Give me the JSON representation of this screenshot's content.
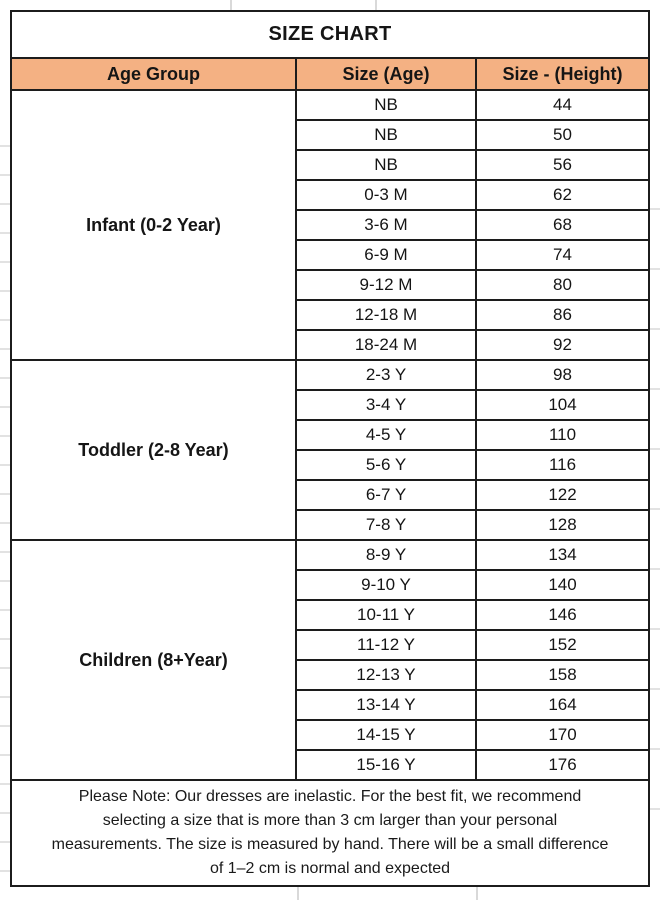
{
  "title": "SIZE CHART",
  "columns": [
    "Age Group",
    "Size (Age)",
    "Size - (Height)"
  ],
  "groups": [
    {
      "label": "Infant (0-2 Year)",
      "rows": [
        [
          "NB",
          "44"
        ],
        [
          "NB",
          "50"
        ],
        [
          "NB",
          "56"
        ],
        [
          "0-3 M",
          "62"
        ],
        [
          "3-6 M",
          "68"
        ],
        [
          "6-9 M",
          "74"
        ],
        [
          "9-12 M",
          "80"
        ],
        [
          "12-18 M",
          "86"
        ],
        [
          "18-24 M",
          "92"
        ]
      ]
    },
    {
      "label": "Toddler (2-8 Year)",
      "rows": [
        [
          "2-3 Y",
          "98"
        ],
        [
          "3-4 Y",
          "104"
        ],
        [
          "4-5 Y",
          "110"
        ],
        [
          "5-6 Y",
          "116"
        ],
        [
          "6-7 Y",
          "122"
        ],
        [
          "7-8 Y",
          "128"
        ]
      ]
    },
    {
      "label": "Children (8+Year)",
      "rows": [
        [
          "8-9 Y",
          "134"
        ],
        [
          "9-10 Y",
          "140"
        ],
        [
          "10-11 Y",
          "146"
        ],
        [
          "11-12 Y",
          "152"
        ],
        [
          "12-13 Y",
          "158"
        ],
        [
          "13-14 Y",
          "164"
        ],
        [
          "14-15 Y",
          "170"
        ],
        [
          "15-16 Y",
          "176"
        ]
      ]
    }
  ],
  "note": "Please Note: Our dresses are inelastic. For the best fit, we recommend selecting a size that is more than 3 cm larger than your personal measurements. The size is measured by hand. There will be a small difference of 1–2 cm is normal and expected",
  "colors": {
    "header_bg": "#F4B183",
    "border": "#1c1c1c",
    "text": "#151515"
  },
  "chart_data": {
    "type": "table",
    "title": "SIZE CHART",
    "columns": [
      "Age Group",
      "Size (Age)",
      "Size - (Height)"
    ],
    "rows": [
      [
        "Infant (0-2 Year)",
        "NB",
        44
      ],
      [
        "Infant (0-2 Year)",
        "NB",
        50
      ],
      [
        "Infant (0-2 Year)",
        "NB",
        56
      ],
      [
        "Infant (0-2 Year)",
        "0-3 M",
        62
      ],
      [
        "Infant (0-2 Year)",
        "3-6 M",
        68
      ],
      [
        "Infant (0-2 Year)",
        "6-9 M",
        74
      ],
      [
        "Infant (0-2 Year)",
        "9-12 M",
        80
      ],
      [
        "Infant (0-2 Year)",
        "12-18 M",
        86
      ],
      [
        "Infant (0-2 Year)",
        "18-24 M",
        92
      ],
      [
        "Toddler (2-8 Year)",
        "2-3 Y",
        98
      ],
      [
        "Toddler (2-8 Year)",
        "3-4 Y",
        104
      ],
      [
        "Toddler (2-8 Year)",
        "4-5 Y",
        110
      ],
      [
        "Toddler (2-8 Year)",
        "5-6 Y",
        116
      ],
      [
        "Toddler (2-8 Year)",
        "6-7 Y",
        122
      ],
      [
        "Toddler (2-8 Year)",
        "7-8 Y",
        128
      ],
      [
        "Children (8+Year)",
        "8-9 Y",
        134
      ],
      [
        "Children (8+Year)",
        "9-10 Y",
        140
      ],
      [
        "Children (8+Year)",
        "10-11 Y",
        146
      ],
      [
        "Children (8+Year)",
        "11-12 Y",
        152
      ],
      [
        "Children (8+Year)",
        "12-13 Y",
        158
      ],
      [
        "Children (8+Year)",
        "13-14 Y",
        164
      ],
      [
        "Children (8+Year)",
        "14-15 Y",
        170
      ],
      [
        "Children (8+Year)",
        "15-16 Y",
        176
      ]
    ],
    "note": "Please Note: Our dresses are inelastic. For the best fit, we recommend selecting a size that is more than 3 cm larger than your personal measurements. The size is measured by hand. There will be a small difference of 1–2 cm is normal and expected"
  }
}
